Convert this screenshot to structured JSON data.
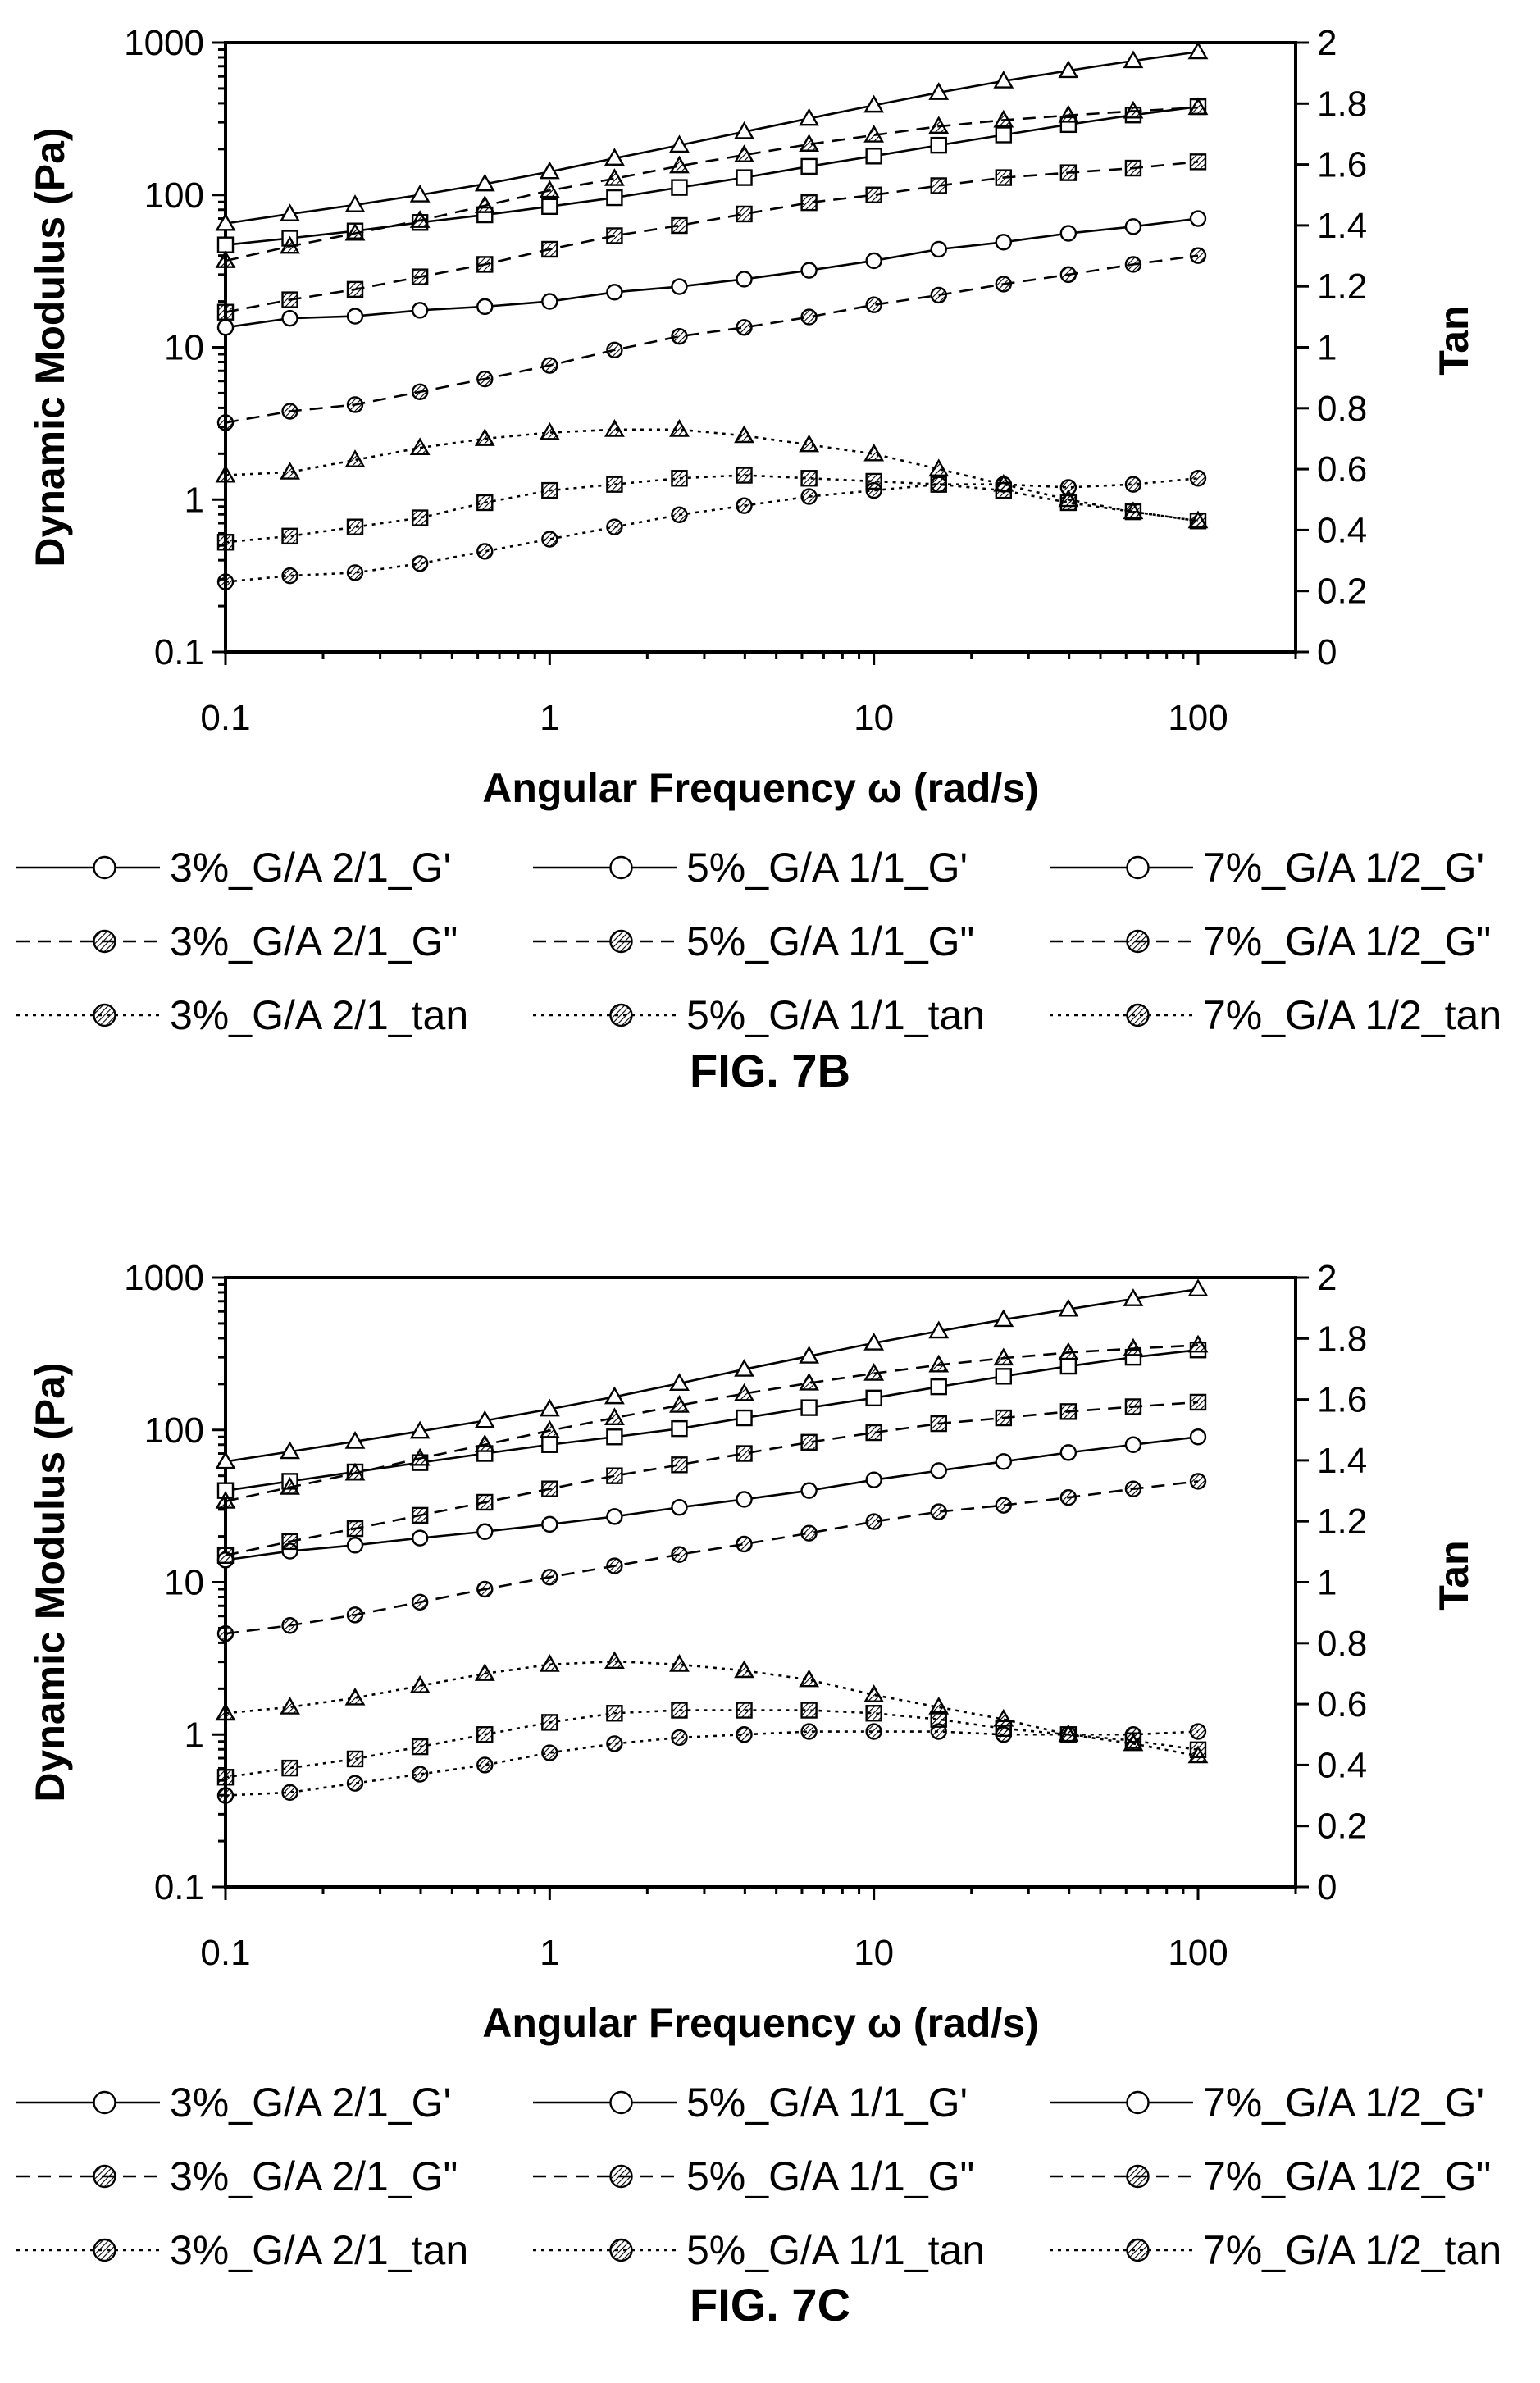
{
  "chart_data": [
    {
      "type": "line",
      "figure_label": "FIG. 7B",
      "xlabel": "Angular Frequency ω (rad/s)",
      "ylabel": "Dynamic Modulus (Pa)",
      "y2label": "Tan",
      "xscale": "log",
      "yscale": "log",
      "xlim": [
        0.1,
        200
      ],
      "ylim": [
        0.1,
        1000
      ],
      "y2lim": [
        0,
        2
      ],
      "xticks": [
        "0.1",
        "1",
        "10",
        "100"
      ],
      "yticks": [
        "0.1",
        "1",
        "10",
        "100",
        "1000"
      ],
      "y2ticks": [
        "0",
        "0.2",
        "0.4",
        "0.6",
        "0.8",
        "1",
        "1.2",
        "1.4",
        "1.6",
        "1.8",
        "2"
      ],
      "grid": false,
      "legend_position": "bottom",
      "x": [
        0.1,
        0.158,
        0.251,
        0.398,
        0.631,
        1,
        1.585,
        2.512,
        3.981,
        6.31,
        10,
        15.85,
        25.12,
        39.81,
        63.1,
        100
      ],
      "series": [
        {
          "name": "3%_G/A 2/1_G'",
          "axis": "left",
          "line": "solid",
          "marker": "circle-open",
          "values": [
            13.5,
            15.5,
            16,
            17.5,
            18.5,
            20,
            23,
            25,
            28,
            32,
            37,
            44,
            49,
            56,
            62,
            70
          ]
        },
        {
          "name": "5%_G/A 1/1_G'",
          "axis": "left",
          "line": "solid",
          "marker": "square-open",
          "values": [
            47,
            52,
            58,
            66,
            74,
            84,
            96,
            112,
            130,
            154,
            180,
            212,
            248,
            290,
            335,
            380
          ]
        },
        {
          "name": "7%_G/A 1/2_G'",
          "axis": "left",
          "line": "solid",
          "marker": "triangle-open",
          "values": [
            65,
            75,
            86,
            100,
            118,
            142,
            174,
            212,
            260,
            318,
            388,
            470,
            560,
            655,
            760,
            870
          ]
        },
        {
          "name": "3%_G/A 2/1_G\"",
          "axis": "left",
          "line": "dashed",
          "marker": "circle-hatched",
          "values": [
            3.2,
            3.8,
            4.2,
            5.1,
            6.2,
            7.6,
            9.6,
            11.8,
            13.5,
            15.8,
            19,
            22,
            26,
            30,
            35,
            40
          ]
        },
        {
          "name": "5%_G/A 1/1_G\"",
          "axis": "left",
          "line": "dashed",
          "marker": "square-hatched",
          "values": [
            17,
            20.5,
            24,
            29,
            35,
            44,
            54,
            63,
            75,
            89,
            100,
            115,
            130,
            140,
            150,
            165
          ]
        },
        {
          "name": "7%_G/A 1/2_G\"",
          "axis": "left",
          "line": "dashed",
          "marker": "triangle-hatched",
          "values": [
            37,
            46,
            56,
            68,
            85,
            107,
            128,
            155,
            183,
            215,
            247,
            282,
            310,
            333,
            355,
            375
          ]
        },
        {
          "name": "3%_G/A 2/1_tan",
          "axis": "right",
          "line": "dotted",
          "marker": "circle-hatched",
          "values": [
            0.23,
            0.25,
            0.26,
            0.29,
            0.33,
            0.37,
            0.41,
            0.45,
            0.48,
            0.51,
            0.53,
            0.55,
            0.55,
            0.54,
            0.55,
            0.57
          ]
        },
        {
          "name": "5%_G/A 1/1_tan",
          "axis": "right",
          "line": "dotted",
          "marker": "square-hatched",
          "values": [
            0.36,
            0.38,
            0.41,
            0.44,
            0.49,
            0.53,
            0.55,
            0.57,
            0.58,
            0.57,
            0.56,
            0.55,
            0.53,
            0.49,
            0.46,
            0.43
          ]
        },
        {
          "name": "7%_G/A 1/2_tan",
          "axis": "right",
          "line": "dotted",
          "marker": "triangle-hatched",
          "values": [
            0.58,
            0.59,
            0.63,
            0.67,
            0.7,
            0.72,
            0.73,
            0.73,
            0.71,
            0.68,
            0.65,
            0.6,
            0.55,
            0.5,
            0.46,
            0.43
          ]
        }
      ]
    },
    {
      "type": "line",
      "figure_label": "FIG. 7C",
      "xlabel": "Angular Frequency ω (rad/s)",
      "ylabel": "Dynamic Modulus (Pa)",
      "y2label": "Tan",
      "xscale": "log",
      "yscale": "log",
      "xlim": [
        0.1,
        200
      ],
      "ylim": [
        0.1,
        1000
      ],
      "y2lim": [
        0,
        2
      ],
      "xticks": [
        "0.1",
        "1",
        "10",
        "100"
      ],
      "yticks": [
        "0.1",
        "1",
        "10",
        "100",
        "1000"
      ],
      "y2ticks": [
        "0",
        "0.2",
        "0.4",
        "0.6",
        "0.8",
        "1",
        "1.2",
        "1.4",
        "1.6",
        "1.8",
        "2"
      ],
      "grid": false,
      "legend_position": "bottom",
      "x": [
        0.1,
        0.158,
        0.251,
        0.398,
        0.631,
        1,
        1.585,
        2.512,
        3.981,
        6.31,
        10,
        15.85,
        25.12,
        39.81,
        63.1,
        100
      ],
      "series": [
        {
          "name": "3%_G/A 2/1_G'",
          "axis": "left",
          "line": "solid",
          "marker": "circle-open",
          "values": [
            14,
            16,
            17.5,
            19.5,
            21.5,
            24,
            27,
            31,
            35,
            40,
            47,
            54,
            62,
            71,
            80,
            90
          ]
        },
        {
          "name": "5%_G/A 1/1_G'",
          "axis": "left",
          "line": "solid",
          "marker": "square-open",
          "values": [
            40,
            46,
            53,
            61,
            70,
            80,
            90,
            102,
            120,
            140,
            162,
            192,
            225,
            262,
            300,
            335
          ]
        },
        {
          "name": "7%_G/A 1/2_G'",
          "axis": "left",
          "line": "solid",
          "marker": "triangle-open",
          "values": [
            62,
            72,
            84,
            98,
            115,
            137,
            165,
            202,
            250,
            305,
            372,
            445,
            530,
            620,
            725,
            840
          ]
        },
        {
          "name": "3%_G/A 2/1_G\"",
          "axis": "left",
          "line": "dashed",
          "marker": "circle-hatched",
          "values": [
            4.6,
            5.2,
            6.1,
            7.4,
            9.0,
            10.8,
            12.8,
            15.2,
            17.8,
            21,
            25,
            29,
            32,
            36,
            41,
            46
          ]
        },
        {
          "name": "5%_G/A 1/1_G\"",
          "axis": "left",
          "line": "dashed",
          "marker": "square-hatched",
          "values": [
            15,
            18.5,
            22.5,
            27.5,
            33.5,
            41,
            50,
            59,
            70,
            83,
            96,
            110,
            120,
            132,
            142,
            152
          ]
        },
        {
          "name": "7%_G/A 1/2_G\"",
          "axis": "left",
          "line": "dashed",
          "marker": "triangle-hatched",
          "values": [
            34,
            42,
            52,
            65,
            80,
            99,
            120,
            145,
            173,
            203,
            235,
            267,
            296,
            322,
            342,
            360
          ]
        },
        {
          "name": "3%_G/A 2/1_tan",
          "axis": "right",
          "line": "dotted",
          "marker": "circle-hatched",
          "values": [
            0.3,
            0.31,
            0.34,
            0.37,
            0.4,
            0.44,
            0.47,
            0.49,
            0.5,
            0.51,
            0.51,
            0.51,
            0.5,
            0.5,
            0.5,
            0.51
          ]
        },
        {
          "name": "5%_G/A 1/1_tan",
          "axis": "right",
          "line": "dotted",
          "marker": "square-hatched",
          "values": [
            0.36,
            0.39,
            0.42,
            0.46,
            0.5,
            0.54,
            0.57,
            0.58,
            0.58,
            0.58,
            0.57,
            0.55,
            0.52,
            0.5,
            0.48,
            0.45
          ]
        },
        {
          "name": "7%_G/A 1/2_tan",
          "axis": "right",
          "line": "dotted",
          "marker": "triangle-hatched",
          "values": [
            0.57,
            0.59,
            0.62,
            0.66,
            0.7,
            0.73,
            0.74,
            0.73,
            0.71,
            0.68,
            0.63,
            0.59,
            0.55,
            0.5,
            0.47,
            0.43
          ]
        }
      ]
    }
  ]
}
